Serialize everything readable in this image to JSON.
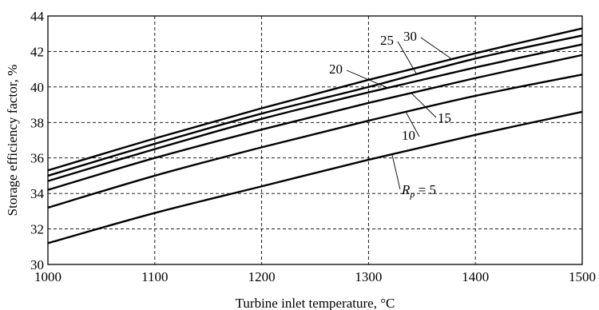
{
  "chart_data": {
    "type": "line",
    "xlabel": "Turbine inlet temperature, °C",
    "ylabel": "Storage efficiency factor, %",
    "xlim": [
      1000,
      1500
    ],
    "ylim": [
      30,
      44
    ],
    "xticks": [
      1000,
      1100,
      1200,
      1300,
      1400,
      1500
    ],
    "yticks": [
      30,
      32,
      34,
      36,
      38,
      40,
      42,
      44
    ],
    "grid": true,
    "x": [
      1000,
      1100,
      1200,
      1300,
      1400,
      1500
    ],
    "series": [
      {
        "name": "5",
        "label_prefix": "R",
        "label_sub": "p",
        "label_eq": " = 5",
        "values": [
          31.2,
          32.9,
          34.4,
          35.9,
          37.3,
          38.6
        ]
      },
      {
        "name": "10",
        "values": [
          33.2,
          35.0,
          36.6,
          38.1,
          39.5,
          40.7
        ]
      },
      {
        "name": "15",
        "values": [
          34.2,
          36.0,
          37.6,
          39.1,
          40.5,
          41.8
        ]
      },
      {
        "name": "20",
        "values": [
          34.7,
          36.5,
          38.2,
          39.7,
          41.1,
          42.4
        ]
      },
      {
        "name": "25",
        "values": [
          35.0,
          36.8,
          38.5,
          40.0,
          41.6,
          42.9
        ]
      },
      {
        "name": "30",
        "values": [
          35.3,
          37.1,
          38.8,
          40.4,
          41.9,
          43.3
        ]
      }
    ]
  }
}
